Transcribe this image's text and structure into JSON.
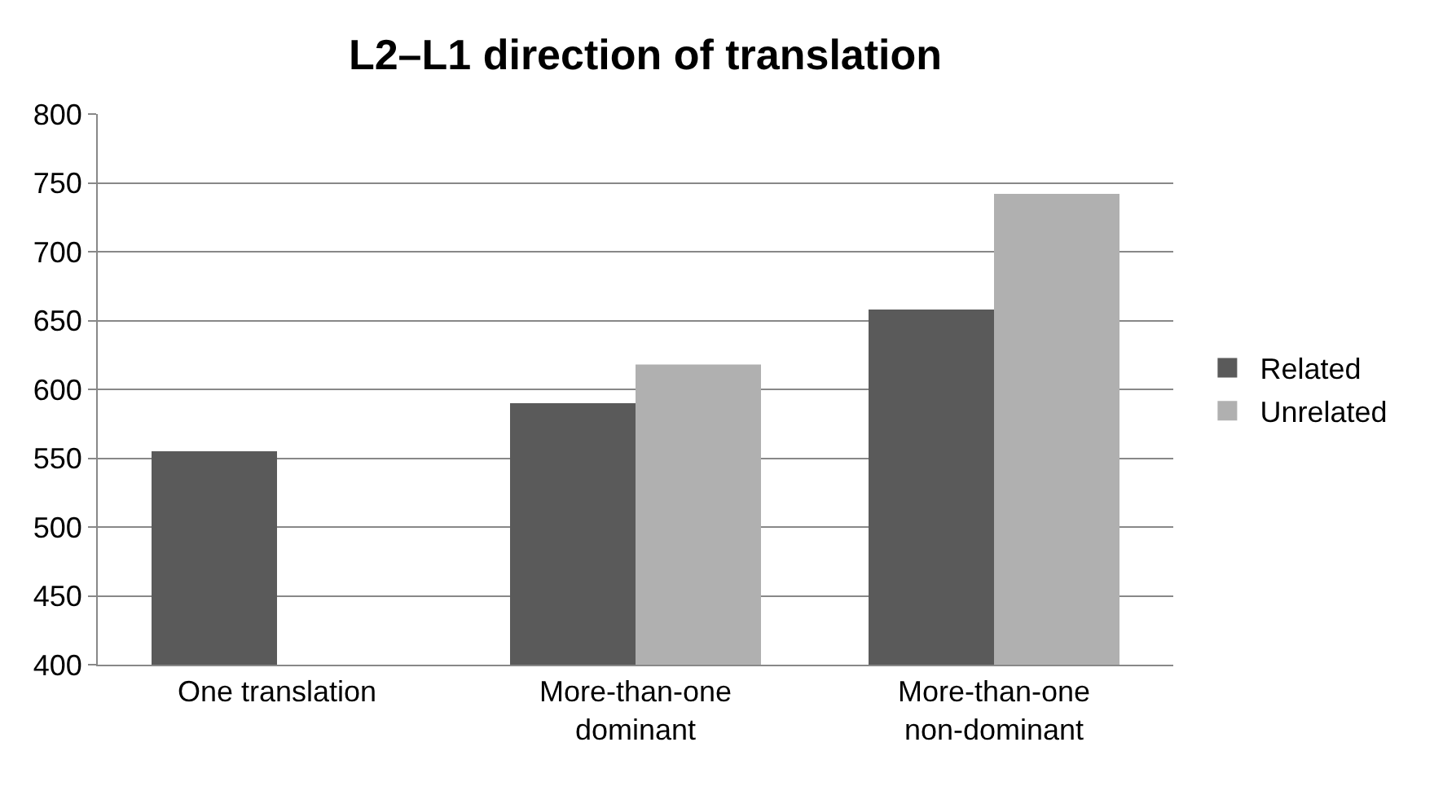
{
  "chart_data": {
    "type": "bar",
    "title": "L2–L1 direction of translation",
    "categories": [
      "One translation",
      "More-than-one\ndominant",
      "More-than-one\nnon-dominant"
    ],
    "series": [
      {
        "name": "Related",
        "color": "#5a5a5a",
        "values": [
          555,
          590,
          658
        ]
      },
      {
        "name": "Unrelated",
        "color": "#b0b0b0",
        "values": [
          null,
          618,
          742
        ]
      }
    ],
    "ylim": [
      400,
      800
    ],
    "yticks": [
      400,
      450,
      500,
      550,
      600,
      650,
      700,
      750,
      800
    ],
    "grid": "y",
    "legend": "right"
  }
}
